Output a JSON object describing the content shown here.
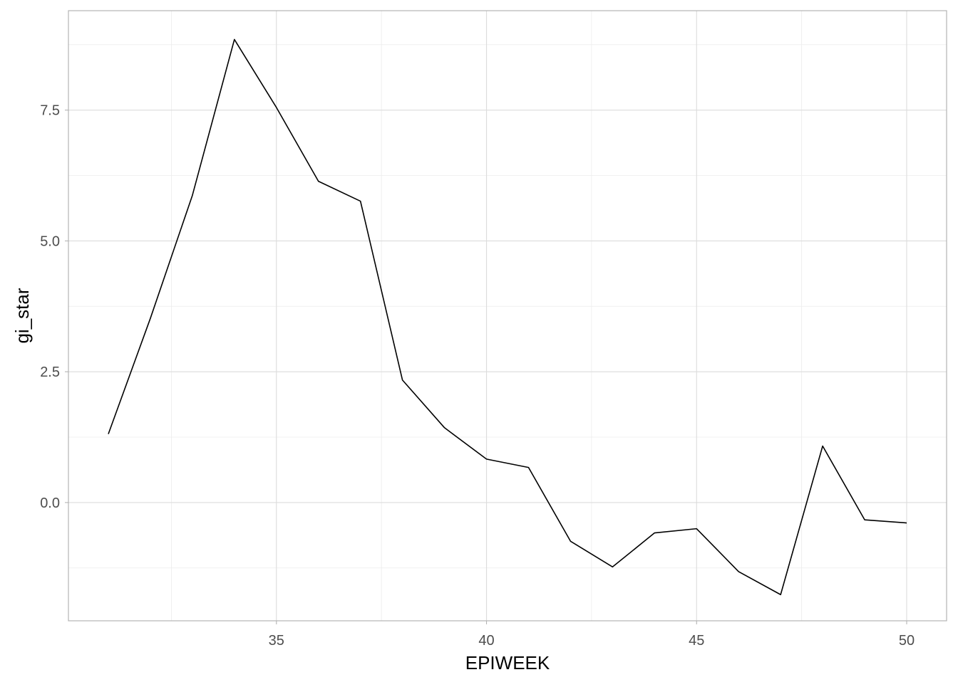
{
  "chart_data": {
    "type": "line",
    "title": "",
    "xlabel": "EPIWEEK",
    "ylabel": "gi_star",
    "xlim": [
      30.05,
      50.95
    ],
    "ylim": [
      -2.26,
      9.4
    ],
    "x_major_ticks": [
      35,
      40,
      45,
      50
    ],
    "x_minor_ticks": [
      32.5,
      37.5,
      42.5,
      47.5
    ],
    "y_major_ticks": [
      0,
      2.5,
      5,
      7.5
    ],
    "y_minor_ticks": [
      -1.25,
      1.25,
      3.75,
      6.25,
      8.75
    ],
    "x_tick_labels": [
      "35",
      "40",
      "45",
      "50"
    ],
    "y_tick_labels": [
      "0.0",
      "2.5",
      "5.0",
      "7.5"
    ],
    "grid": true,
    "series": [
      {
        "color": "#000000",
        "x": [
          31,
          32,
          33,
          34,
          35,
          36,
          37,
          38,
          39,
          40,
          41,
          42,
          43,
          44,
          45,
          46,
          47,
          48,
          49,
          50
        ],
        "y": [
          1.31,
          3.52,
          5.87,
          8.85,
          7.55,
          6.14,
          5.76,
          2.34,
          1.43,
          0.83,
          0.67,
          -0.74,
          -1.23,
          -0.58,
          -0.5,
          -1.32,
          -1.76,
          1.08,
          -0.33,
          -0.39
        ]
      }
    ]
  }
}
